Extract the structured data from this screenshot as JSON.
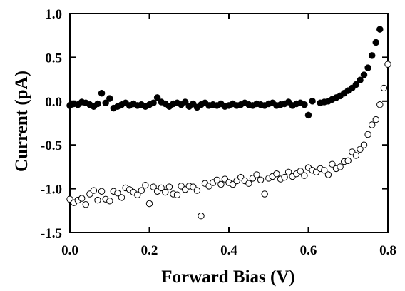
{
  "chart_data": {
    "type": "scatter",
    "xlabel": "Forward Bias (V)",
    "ylabel": "Current (pA)",
    "xlim": [
      0.0,
      0.8
    ],
    "ylim": [
      -1.5,
      1.0
    ],
    "xticks": [
      0.0,
      0.2,
      0.4,
      0.6,
      0.8
    ],
    "xtick_labels": [
      "0.0",
      "0.2",
      "0.4",
      "0.6",
      "0.8"
    ],
    "yticks": [
      -1.5,
      -1.0,
      -0.5,
      0.0,
      0.5,
      1.0
    ],
    "ytick_labels": [
      "-1.5",
      "-1.0",
      "-0.5",
      "0.0",
      "0.5",
      "1.0"
    ],
    "grid": false,
    "series": [
      {
        "marker": "filled-circle",
        "color": "#000000",
        "points": [
          [
            0.0,
            -0.05
          ],
          [
            0.01,
            -0.03
          ],
          [
            0.02,
            -0.04
          ],
          [
            0.03,
            -0.01
          ],
          [
            0.04,
            -0.02
          ],
          [
            0.05,
            -0.04
          ],
          [
            0.06,
            -0.06
          ],
          [
            0.07,
            -0.03
          ],
          [
            0.08,
            0.09
          ],
          [
            0.09,
            -0.02
          ],
          [
            0.1,
            0.03
          ],
          [
            0.11,
            -0.08
          ],
          [
            0.12,
            -0.06
          ],
          [
            0.13,
            -0.04
          ],
          [
            0.14,
            -0.02
          ],
          [
            0.15,
            -0.05
          ],
          [
            0.16,
            -0.03
          ],
          [
            0.17,
            -0.05
          ],
          [
            0.18,
            -0.04
          ],
          [
            0.19,
            -0.06
          ],
          [
            0.2,
            -0.04
          ],
          [
            0.21,
            -0.02
          ],
          [
            0.22,
            0.04
          ],
          [
            0.23,
            -0.01
          ],
          [
            0.24,
            -0.03
          ],
          [
            0.25,
            -0.06
          ],
          [
            0.26,
            -0.03
          ],
          [
            0.27,
            -0.02
          ],
          [
            0.28,
            -0.04
          ],
          [
            0.29,
            -0.01
          ],
          [
            0.3,
            -0.06
          ],
          [
            0.31,
            -0.03
          ],
          [
            0.32,
            -0.07
          ],
          [
            0.33,
            -0.04
          ],
          [
            0.34,
            -0.02
          ],
          [
            0.35,
            -0.05
          ],
          [
            0.36,
            -0.04
          ],
          [
            0.37,
            -0.05
          ],
          [
            0.38,
            -0.03
          ],
          [
            0.39,
            -0.06
          ],
          [
            0.4,
            -0.05
          ],
          [
            0.41,
            -0.03
          ],
          [
            0.42,
            -0.05
          ],
          [
            0.43,
            -0.04
          ],
          [
            0.44,
            -0.02
          ],
          [
            0.45,
            -0.04
          ],
          [
            0.46,
            -0.05
          ],
          [
            0.47,
            -0.03
          ],
          [
            0.48,
            -0.04
          ],
          [
            0.49,
            -0.05
          ],
          [
            0.5,
            -0.03
          ],
          [
            0.51,
            -0.02
          ],
          [
            0.52,
            -0.05
          ],
          [
            0.53,
            -0.04
          ],
          [
            0.54,
            -0.03
          ],
          [
            0.55,
            -0.01
          ],
          [
            0.56,
            -0.05
          ],
          [
            0.57,
            -0.03
          ],
          [
            0.58,
            -0.02
          ],
          [
            0.59,
            -0.04
          ],
          [
            0.6,
            -0.16
          ],
          [
            0.61,
            0.0
          ],
          [
            0.63,
            -0.02
          ],
          [
            0.64,
            -0.01
          ],
          [
            0.65,
            0.0
          ],
          [
            0.66,
            0.02
          ],
          [
            0.67,
            0.04
          ],
          [
            0.68,
            0.06
          ],
          [
            0.69,
            0.09
          ],
          [
            0.7,
            0.12
          ],
          [
            0.71,
            0.15
          ],
          [
            0.72,
            0.19
          ],
          [
            0.73,
            0.24
          ],
          [
            0.74,
            0.3
          ],
          [
            0.75,
            0.38
          ],
          [
            0.76,
            0.52
          ],
          [
            0.77,
            0.67
          ],
          [
            0.78,
            0.82
          ]
        ]
      },
      {
        "marker": "open-circle",
        "color": "#000000",
        "points": [
          [
            0.0,
            -1.12
          ],
          [
            0.01,
            -1.16
          ],
          [
            0.02,
            -1.13
          ],
          [
            0.03,
            -1.11
          ],
          [
            0.04,
            -1.18
          ],
          [
            0.05,
            -1.06
          ],
          [
            0.06,
            -1.02
          ],
          [
            0.07,
            -1.13
          ],
          [
            0.08,
            -1.03
          ],
          [
            0.09,
            -1.12
          ],
          [
            0.1,
            -1.14
          ],
          [
            0.11,
            -1.03
          ],
          [
            0.12,
            -1.05
          ],
          [
            0.13,
            -1.1
          ],
          [
            0.14,
            -0.99
          ],
          [
            0.15,
            -1.01
          ],
          [
            0.16,
            -1.04
          ],
          [
            0.17,
            -1.07
          ],
          [
            0.18,
            -1.02
          ],
          [
            0.19,
            -0.96
          ],
          [
            0.2,
            -1.17
          ],
          [
            0.21,
            -0.98
          ],
          [
            0.22,
            -1.03
          ],
          [
            0.23,
            -0.99
          ],
          [
            0.24,
            -1.04
          ],
          [
            0.25,
            -0.98
          ],
          [
            0.26,
            -1.06
          ],
          [
            0.27,
            -1.07
          ],
          [
            0.28,
            -0.97
          ],
          [
            0.29,
            -1.01
          ],
          [
            0.3,
            -0.97
          ],
          [
            0.31,
            -0.98
          ],
          [
            0.32,
            -1.02
          ],
          [
            0.33,
            -1.31
          ],
          [
            0.34,
            -0.94
          ],
          [
            0.35,
            -0.97
          ],
          [
            0.36,
            -0.93
          ],
          [
            0.37,
            -0.9
          ],
          [
            0.38,
            -0.95
          ],
          [
            0.39,
            -0.89
          ],
          [
            0.4,
            -0.93
          ],
          [
            0.41,
            -0.95
          ],
          [
            0.42,
            -0.91
          ],
          [
            0.43,
            -0.87
          ],
          [
            0.44,
            -0.91
          ],
          [
            0.45,
            -0.94
          ],
          [
            0.46,
            -0.88
          ],
          [
            0.47,
            -0.84
          ],
          [
            0.48,
            -0.9
          ],
          [
            0.49,
            -1.06
          ],
          [
            0.5,
            -0.88
          ],
          [
            0.51,
            -0.86
          ],
          [
            0.52,
            -0.83
          ],
          [
            0.53,
            -0.89
          ],
          [
            0.54,
            -0.87
          ],
          [
            0.55,
            -0.81
          ],
          [
            0.56,
            -0.86
          ],
          [
            0.57,
            -0.83
          ],
          [
            0.58,
            -0.8
          ],
          [
            0.59,
            -0.85
          ],
          [
            0.6,
            -0.76
          ],
          [
            0.61,
            -0.79
          ],
          [
            0.62,
            -0.81
          ],
          [
            0.63,
            -0.77
          ],
          [
            0.64,
            -0.79
          ],
          [
            0.65,
            -0.84
          ],
          [
            0.66,
            -0.72
          ],
          [
            0.67,
            -0.77
          ],
          [
            0.68,
            -0.75
          ],
          [
            0.69,
            -0.69
          ],
          [
            0.7,
            -0.68
          ],
          [
            0.71,
            -0.58
          ],
          [
            0.72,
            -0.62
          ],
          [
            0.73,
            -0.55
          ],
          [
            0.74,
            -0.5
          ],
          [
            0.75,
            -0.38
          ],
          [
            0.76,
            -0.27
          ],
          [
            0.77,
            -0.21
          ],
          [
            0.78,
            -0.04
          ],
          [
            0.79,
            0.15
          ],
          [
            0.8,
            0.42
          ]
        ]
      }
    ]
  }
}
